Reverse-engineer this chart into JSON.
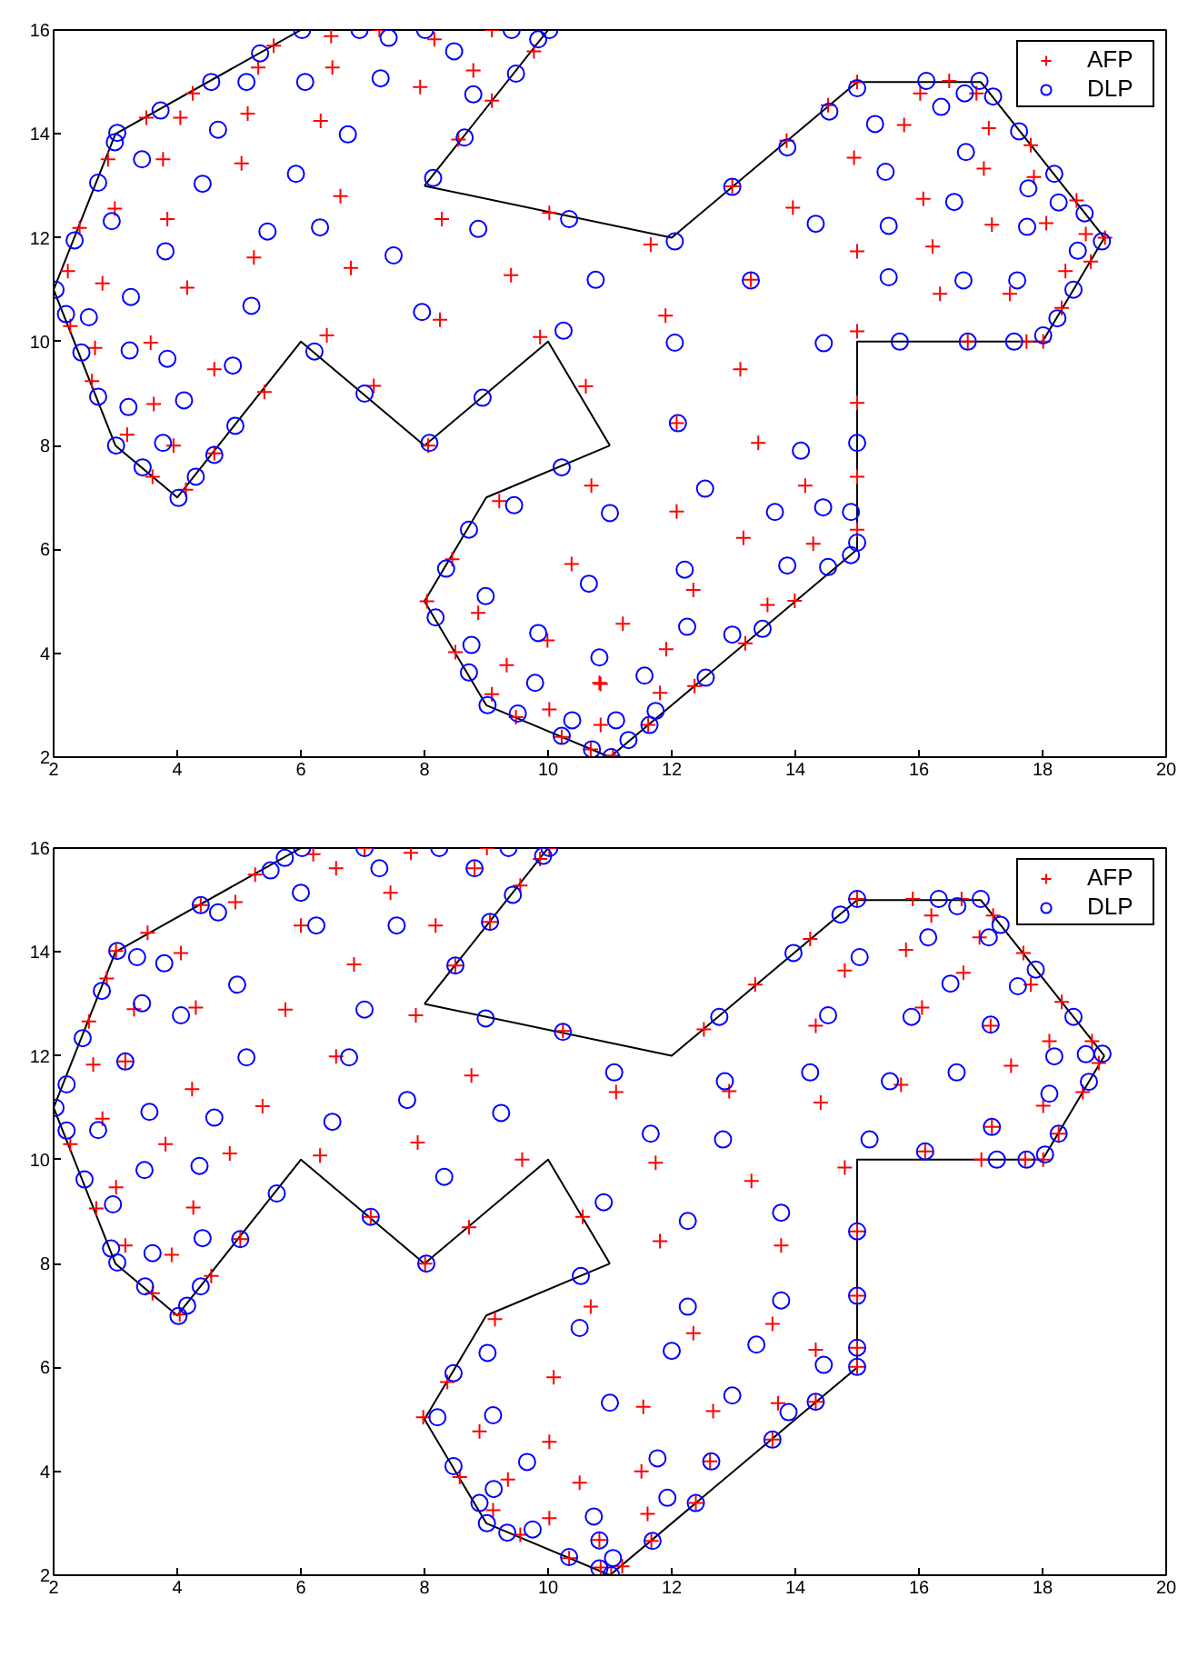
{
  "chart_data": [
    {
      "type": "scatter",
      "xlim": [
        2,
        20
      ],
      "ylim": [
        2,
        16
      ],
      "xticks": [
        2,
        4,
        6,
        8,
        10,
        12,
        14,
        16,
        18,
        20
      ],
      "yticks": [
        2,
        4,
        6,
        8,
        10,
        12,
        14,
        16
      ],
      "grid": false,
      "legend": "top right",
      "series": [
        {
          "name": "AFP",
          "color": "#ff0000",
          "marker": "cross",
          "x": [
            6.49,
            7.27,
            6.51,
            8.16,
            9.09,
            8.79,
            7.93,
            9.77,
            9.09,
            8.55,
            5.56,
            5.31,
            4.25,
            4.05,
            3.5,
            5.14,
            6.32,
            2.88,
            3.77,
            5.04,
            6.64,
            2.99,
            3.84,
            2.42,
            8.28,
            10.02,
            2.23,
            2.79,
            4.16,
            5.24,
            6.81,
            9.4,
            8.25,
            2.27,
            2.67,
            3.57,
            6.42,
            9.87,
            4.6,
            5.41,
            2.62,
            3.62,
            3.19,
            3.94,
            7.18,
            8.06,
            3.6,
            4.14,
            4.6,
            9.21,
            8.45,
            10.38,
            8.04,
            8.87,
            8.5,
            9.99,
            9.33,
            9.09,
            10.85,
            10.02,
            9.48,
            10.22,
            15.0,
            16.02,
            16.49,
            16.93,
            15.76,
            17.13,
            17.81,
            14.95,
            17.05,
            17.86,
            14.53,
            13.86,
            12.98,
            16.07,
            13.96,
            17.18,
            18.06,
            18.55,
            18.7,
            19.01,
            18.78,
            16.22,
            15.0,
            11.66,
            18.37,
            13.28,
            16.34,
            17.47,
            18.31,
            18.01,
            17.74,
            16.79,
            15.0,
            11.9,
            13.11,
            15.0,
            10.61,
            12.08,
            13.4,
            10.7,
            14.16,
            15.0,
            12.08,
            13.16,
            14.29,
            15.0,
            12.35,
            13.55,
            13.99,
            11.21,
            11.91,
            13.19,
            10.83,
            12.37,
            11.81,
            10.85,
            11.62,
            11.05,
            10.69
          ],
          "values": [
            15.88,
            16.0,
            15.28,
            15.82,
            16.0,
            15.22,
            14.9,
            15.59,
            14.64,
            13.89,
            15.7,
            15.28,
            14.78,
            14.31,
            14.31,
            14.39,
            14.25,
            13.51,
            13.51,
            13.43,
            12.8,
            12.56,
            12.36,
            12.19,
            12.36,
            12.48,
            11.36,
            11.12,
            11.04,
            11.62,
            11.42,
            11.28,
            10.42,
            10.3,
            9.88,
            9.98,
            10.12,
            10.09,
            9.47,
            9.03,
            9.24,
            8.8,
            8.21,
            8.0,
            9.15,
            8.0,
            7.4,
            7.15,
            7.85,
            6.93,
            5.81,
            5.72,
            5.0,
            4.78,
            4.02,
            4.25,
            3.77,
            3.21,
            3.41,
            2.92,
            2.77,
            2.39,
            15.0,
            14.78,
            15.02,
            14.78,
            14.17,
            14.11,
            13.78,
            13.54,
            13.33,
            13.17,
            14.55,
            13.87,
            12.99,
            12.75,
            12.58,
            12.25,
            12.28,
            12.72,
            12.07,
            12.0,
            11.54,
            11.83,
            11.74,
            11.87,
            11.36,
            11.19,
            10.92,
            10.92,
            10.65,
            10.0,
            10.0,
            10.0,
            10.2,
            10.5,
            9.47,
            8.82,
            9.14,
            8.43,
            8.05,
            7.23,
            7.23,
            7.4,
            6.73,
            6.22,
            6.11,
            6.38,
            5.22,
            4.93,
            5.01,
            4.57,
            4.08,
            4.19,
            3.43,
            3.37,
            3.24,
            2.62,
            2.62,
            2.03,
            2.15
          ]
        },
        {
          "name": "DLP",
          "color": "#0000ff",
          "marker": "circle",
          "x": [
            6.02,
            6.95,
            8.01,
            9.41,
            10.02,
            7.42,
            8.48,
            9.84,
            5.34,
            4.55,
            5.12,
            6.07,
            7.29,
            9.48,
            8.79,
            3.73,
            4.66,
            6.76,
            8.65,
            3.03,
            2.99,
            2.72,
            3.43,
            4.41,
            5.92,
            8.14,
            2.34,
            2.94,
            3.81,
            5.46,
            6.31,
            7.5,
            8.87,
            10.34,
            10.77,
            2.03,
            2.2,
            2.57,
            3.25,
            5.2,
            7.96,
            10.25,
            2.45,
            3.23,
            3.84,
            4.9,
            6.22,
            2.72,
            3.21,
            4.11,
            7.03,
            8.94,
            3.01,
            3.77,
            3.44,
            4.3,
            4.02,
            4.6,
            4.94,
            8.08,
            10.22,
            9.45,
            11.0,
            8.72,
            8.35,
            10.66,
            8.99,
            8.18,
            9.84,
            8.76,
            10.83,
            8.72,
            9.79,
            9.02,
            9.51,
            10.39,
            11.1,
            10.22,
            10.71,
            11.02,
            15.0,
            16.12,
            16.98,
            16.74,
            17.2,
            16.36,
            14.55,
            15.29,
            17.62,
            13.87,
            16.76,
            15.46,
            18.19,
            17.77,
            12.98,
            16.57,
            18.26,
            18.68,
            14.33,
            15.51,
            17.75,
            18.96,
            12.05,
            18.57,
            13.28,
            15.51,
            16.72,
            17.59,
            18.5,
            18.24,
            18.01,
            15.69,
            16.79,
            17.54,
            12.05,
            14.46,
            12.1,
            15.0,
            14.09,
            12.54,
            13.67,
            14.45,
            14.9,
            15.0,
            14.9,
            14.53,
            12.21,
            13.87,
            12.25,
            13.47,
            12.98,
            11.56,
            12.55,
            11.74,
            11.64,
            11.3
          ],
          "values": [
            16.0,
            16.0,
            16.0,
            16.0,
            16.0,
            15.85,
            15.59,
            15.82,
            15.55,
            15.0,
            15.0,
            15.0,
            15.07,
            15.16,
            14.76,
            14.45,
            14.08,
            13.99,
            13.93,
            14.02,
            13.84,
            13.06,
            13.51,
            13.04,
            13.23,
            13.15,
            11.95,
            12.32,
            11.74,
            12.12,
            12.2,
            11.66,
            12.17,
            12.36,
            11.19,
            11.0,
            10.53,
            10.47,
            10.86,
            10.69,
            10.57,
            10.21,
            9.79,
            9.83,
            9.67,
            9.54,
            9.81,
            8.94,
            8.74,
            8.87,
            9.0,
            8.92,
            8.0,
            8.05,
            7.58,
            7.4,
            6.99,
            7.82,
            8.38,
            8.05,
            7.58,
            6.85,
            6.7,
            6.38,
            5.63,
            5.34,
            5.1,
            4.69,
            4.39,
            4.16,
            3.92,
            3.63,
            3.43,
            3.0,
            2.84,
            2.71,
            2.71,
            2.41,
            2.15,
            2.0,
            14.88,
            15.02,
            15.02,
            14.78,
            14.72,
            14.52,
            14.43,
            14.19,
            14.05,
            13.74,
            13.65,
            13.27,
            13.23,
            12.95,
            12.98,
            12.69,
            12.68,
            12.47,
            12.27,
            12.23,
            12.21,
            11.93,
            11.93,
            11.75,
            11.18,
            11.24,
            11.18,
            11.18,
            11.0,
            10.45,
            10.12,
            10.0,
            10.0,
            10.0,
            9.98,
            9.97,
            8.43,
            8.05,
            7.9,
            7.17,
            6.72,
            6.81,
            6.72,
            6.13,
            5.89,
            5.66,
            5.61,
            5.69,
            4.51,
            4.47,
            4.36,
            3.57,
            3.53,
            2.89,
            2.62,
            2.33
          ]
        },
        {
          "type": "line",
          "color": "#000000",
          "marker": "none",
          "x": [
            2,
            3,
            4,
            6,
            8,
            10,
            11
          ],
          "values": [
            11,
            8,
            7,
            10,
            8,
            10,
            8
          ]
        },
        {
          "type": "line",
          "color": "#000000",
          "marker": "none",
          "x": [
            8,
            9,
            11
          ],
          "values": [
            5,
            7,
            8
          ]
        },
        {
          "type": "line",
          "color": "#000000",
          "marker": "none",
          "x": [
            8,
            9,
            11,
            15,
            15,
            18,
            19
          ],
          "values": [
            5,
            3,
            2,
            6,
            10,
            10,
            12
          ]
        },
        {
          "type": "line",
          "color": "#000000",
          "marker": "none",
          "x": [
            8,
            12,
            15,
            17,
            19
          ],
          "values": [
            13,
            12,
            15,
            15,
            12
          ]
        },
        {
          "type": "line",
          "color": "#000000",
          "marker": "none",
          "x": [
            8,
            10
          ],
          "values": [
            13,
            16
          ]
        },
        {
          "type": "line",
          "color": "#000000",
          "marker": "none",
          "x": [
            2,
            3,
            6,
            10
          ],
          "values": [
            11,
            14,
            16,
            16
          ]
        }
      ]
    },
    {
      "type": "scatter",
      "xlim": [
        2,
        20
      ],
      "ylim": [
        2,
        16
      ],
      "xticks": [
        2,
        4,
        6,
        8,
        10,
        12,
        14,
        16,
        18,
        20
      ],
      "yticks": [
        2,
        4,
        6,
        8,
        10,
        12,
        14,
        16
      ],
      "grid": false,
      "legend": "top right",
      "series": [
        {
          "name": "AFP",
          "color": "#ff0000",
          "marker": "cross",
          "x": [
            6.2,
            7.03,
            7.78,
            9.01,
            10.02,
            9.87,
            6.57,
            8.81,
            5.26,
            7.45,
            9.55,
            4.94,
            6.0,
            8.18,
            9.06,
            3.52,
            4.38,
            4.06,
            3.01,
            6.86,
            8.5,
            2.86,
            2.57,
            3.3,
            4.3,
            5.75,
            7.86,
            2.64,
            3.16,
            6.57,
            8.76,
            10.24,
            11.1,
            4.24,
            5.38,
            2.79,
            2.27,
            3.81,
            6.31,
            4.85,
            7.89,
            9.58,
            3.01,
            2.69,
            4.26,
            7.13,
            8.72,
            10.56,
            3.16,
            3.91,
            3.6,
            4.04,
            4.55,
            5.02,
            8.01,
            10.69,
            9.14,
            10.09,
            8.37,
            7.98,
            8.89,
            10.02,
            8.57,
            9.35,
            10.51,
            9.11,
            10.02,
            9.55,
            10.34,
            10.83,
            10.85,
            11.02,
            15.0,
            15.9,
            16.69,
            16.2,
            17.2,
            16.98,
            15.79,
            17.69,
            14.24,
            14.8,
            16.72,
            13.35,
            17.81,
            18.31,
            16.05,
            12.52,
            14.33,
            17.16,
            18.11,
            18.8,
            18.91,
            17.49,
            15.71,
            12.93,
            14.41,
            18.65,
            18.01,
            17.18,
            18.26,
            16.1,
            17.01,
            17.72,
            18.01,
            11.74,
            14.8,
            13.29,
            15.0,
            11.81,
            13.77,
            15.0,
            12.35,
            13.63,
            14.33,
            15.0,
            15.0,
            11.54,
            12.67,
            13.72,
            14.33,
            13.63,
            12.62,
            11.51,
            12.39,
            11.61,
            11.67,
            11.2
          ],
          "values": [
            15.88,
            16.0,
            15.91,
            16.0,
            16.0,
            15.79,
            15.61,
            15.61,
            15.49,
            15.14,
            15.28,
            14.96,
            14.51,
            14.51,
            14.58,
            14.37,
            14.9,
            13.98,
            14.02,
            13.76,
            13.74,
            13.49,
            12.66,
            12.9,
            12.93,
            12.89,
            12.78,
            11.83,
            11.89,
            11.99,
            11.62,
            12.48,
            11.3,
            11.36,
            11.03,
            10.79,
            10.3,
            10.3,
            10.08,
            10.12,
            10.33,
            10.0,
            9.47,
            9.06,
            9.08,
            8.9,
            8.7,
            8.9,
            8.35,
            8.17,
            7.43,
            7.02,
            7.76,
            8.47,
            8.0,
            7.17,
            6.93,
            5.81,
            5.72,
            5.04,
            4.77,
            4.57,
            3.89,
            3.84,
            3.78,
            3.25,
            3.1,
            2.78,
            2.33,
            2.68,
            2.15,
            2.0,
            15.02,
            15.02,
            15.02,
            14.7,
            14.7,
            14.28,
            14.04,
            13.98,
            14.25,
            13.64,
            13.6,
            13.37,
            13.37,
            13.04,
            12.93,
            12.51,
            12.58,
            12.58,
            12.28,
            12.28,
            11.86,
            11.81,
            11.44,
            11.32,
            11.1,
            11.3,
            11.04,
            10.63,
            10.5,
            10.16,
            10.0,
            10.0,
            10.0,
            9.94,
            9.85,
            9.59,
            8.62,
            8.43,
            8.35,
            7.38,
            6.66,
            6.84,
            6.34,
            6.38,
            6.01,
            5.24,
            5.16,
            5.31,
            5.34,
            4.61,
            4.19,
            4.0,
            3.39,
            3.18,
            2.66,
            2.17
          ]
        },
        {
          "name": "DLP",
          "color": "#0000ff",
          "marker": "circle",
          "x": [
            6.02,
            7.03,
            8.24,
            9.36,
            10.02,
            5.74,
            5.51,
            7.27,
            8.81,
            9.92,
            6.0,
            9.43,
            4.38,
            4.66,
            6.25,
            7.55,
            9.06,
            3.03,
            3.35,
            3.79,
            8.5,
            4.97,
            2.78,
            3.43,
            4.06,
            7.03,
            8.99,
            10.24,
            2.47,
            5.12,
            6.78,
            3.16,
            11.07,
            2.21,
            2.03,
            2.21,
            2.72,
            3.55,
            4.6,
            6.51,
            7.72,
            9.24,
            2.5,
            3.47,
            4.36,
            8.32,
            10.9,
            5.61,
            2.96,
            2.93,
            3.03,
            3.6,
            4.41,
            5.02,
            7.13,
            8.03,
            3.48,
            4.38,
            4.16,
            4.02,
            10.53,
            10.51,
            9.02,
            11.0,
            8.47,
            8.21,
            9.11,
            9.66,
            8.47,
            10.74,
            8.89,
            9.12,
            9.01,
            9.34,
            9.75,
            10.34,
            10.83,
            11.05,
            10.83,
            11.02,
            15.0,
            14.73,
            16.32,
            16.62,
            17.0,
            17.32,
            17.13,
            16.15,
            13.97,
            15.04,
            17.89,
            16.51,
            17.6,
            12.77,
            14.53,
            15.88,
            17.16,
            18.5,
            18.7,
            18.97,
            18.19,
            16.61,
            14.24,
            12.86,
            15.53,
            18.75,
            18.11,
            17.18,
            18.26,
            11.66,
            12.83,
            15.2,
            16.1,
            17.26,
            17.74,
            18.04,
            12.26,
            13.77,
            15.0,
            12.26,
            13.77,
            15.0,
            12.0,
            13.37,
            14.46,
            15.0,
            15.0,
            12.98,
            13.89,
            14.33,
            13.63,
            12.64,
            11.77,
            11.93,
            12.39,
            11.69
          ],
          "values": [
            16.0,
            16.0,
            16.0,
            16.0,
            16.0,
            15.81,
            15.57,
            15.61,
            15.61,
            15.85,
            15.14,
            15.1,
            14.9,
            14.76,
            14.51,
            14.51,
            14.58,
            14.02,
            13.9,
            13.78,
            13.74,
            13.37,
            13.25,
            13.01,
            12.78,
            12.89,
            12.72,
            12.46,
            12.34,
            11.97,
            11.97,
            11.89,
            11.68,
            11.45,
            11.0,
            10.56,
            10.57,
            10.92,
            10.81,
            10.73,
            11.15,
            10.9,
            9.62,
            9.8,
            9.88,
            9.67,
            9.18,
            9.35,
            9.14,
            8.29,
            8.02,
            8.2,
            8.49,
            8.47,
            8.9,
            8.0,
            7.56,
            7.56,
            7.19,
            6.99,
            7.76,
            6.76,
            6.28,
            5.32,
            5.89,
            5.04,
            5.08,
            4.18,
            4.1,
            3.13,
            3.39,
            3.66,
            3.0,
            2.82,
            2.88,
            2.35,
            2.67,
            2.33,
            2.13,
            2.0,
            15.02,
            14.72,
            15.02,
            14.88,
            15.02,
            14.52,
            14.28,
            14.28,
            13.98,
            13.9,
            13.66,
            13.39,
            13.34,
            12.75,
            12.78,
            12.75,
            12.6,
            12.75,
            12.03,
            12.04,
            11.99,
            11.68,
            11.68,
            11.51,
            11.51,
            11.5,
            11.27,
            10.63,
            10.5,
            10.5,
            10.39,
            10.39,
            10.16,
            10.0,
            10.0,
            10.1,
            8.82,
            8.98,
            8.62,
            7.17,
            7.29,
            7.38,
            6.32,
            6.44,
            6.05,
            6.38,
            6.01,
            5.46,
            5.14,
            5.34,
            4.61,
            4.19,
            4.25,
            3.49,
            3.39,
            2.66
          ]
        },
        {
          "type": "line",
          "color": "#000000",
          "marker": "none",
          "x": [
            2,
            3,
            4,
            6,
            8,
            10,
            11
          ],
          "values": [
            11,
            8,
            7,
            10,
            8,
            10,
            8
          ]
        },
        {
          "type": "line",
          "color": "#000000",
          "marker": "none",
          "x": [
            8,
            9,
            11
          ],
          "values": [
            5,
            7,
            8
          ]
        },
        {
          "type": "line",
          "color": "#000000",
          "marker": "none",
          "x": [
            8,
            9,
            11,
            15,
            15,
            18,
            19
          ],
          "values": [
            5,
            3,
            2,
            6,
            10,
            10,
            12
          ]
        },
        {
          "type": "line",
          "color": "#000000",
          "marker": "none",
          "x": [
            8,
            12,
            15,
            17,
            19
          ],
          "values": [
            13,
            12,
            15,
            15,
            12
          ]
        },
        {
          "type": "line",
          "color": "#000000",
          "marker": "none",
          "x": [
            8,
            10
          ],
          "values": [
            13,
            16
          ]
        },
        {
          "type": "line",
          "color": "#000000",
          "marker": "none",
          "x": [
            2,
            3,
            6,
            10
          ],
          "values": [
            11,
            14,
            16,
            16
          ]
        }
      ]
    }
  ]
}
